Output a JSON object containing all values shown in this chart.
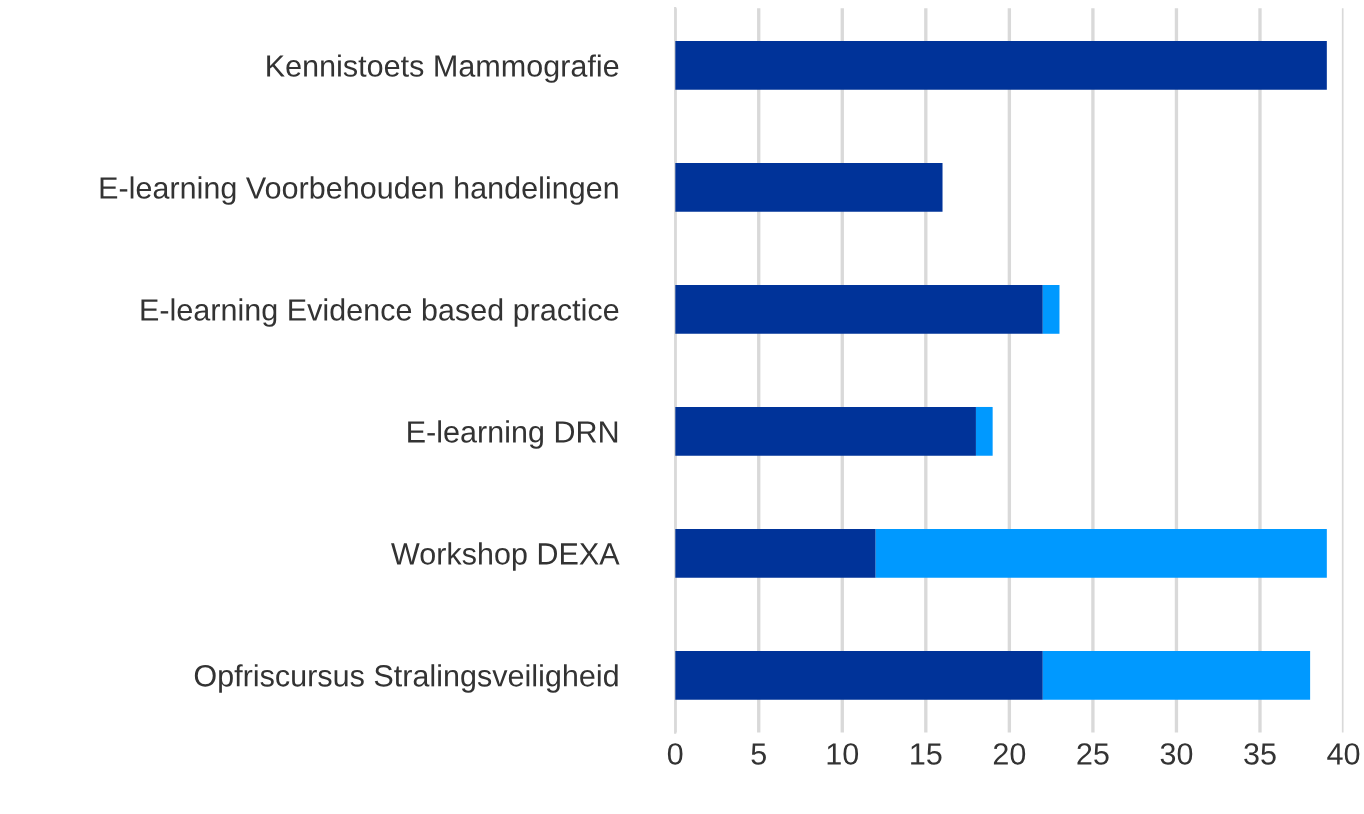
{
  "chart_data": {
    "type": "bar",
    "orientation": "horizontal",
    "stacked": true,
    "categories": [
      "Kennistoets Mammografie",
      "E-learning Voorbehouden handelingen",
      "E-learning Evidence based practice",
      "E-learning DRN",
      "Workshop DEXA",
      "Opfriscursus Stralingsveiligheid"
    ],
    "series": [
      {
        "color": "#003399",
        "values": [
          39,
          16,
          22,
          18,
          12,
          22
        ]
      },
      {
        "color": "#0099ff",
        "values": [
          0,
          0,
          1,
          1,
          27,
          16
        ]
      }
    ],
    "xlim": [
      0,
      40
    ],
    "xticks": [
      0,
      5,
      10,
      15,
      20,
      25,
      30,
      35,
      40
    ],
    "grid": "x"
  }
}
